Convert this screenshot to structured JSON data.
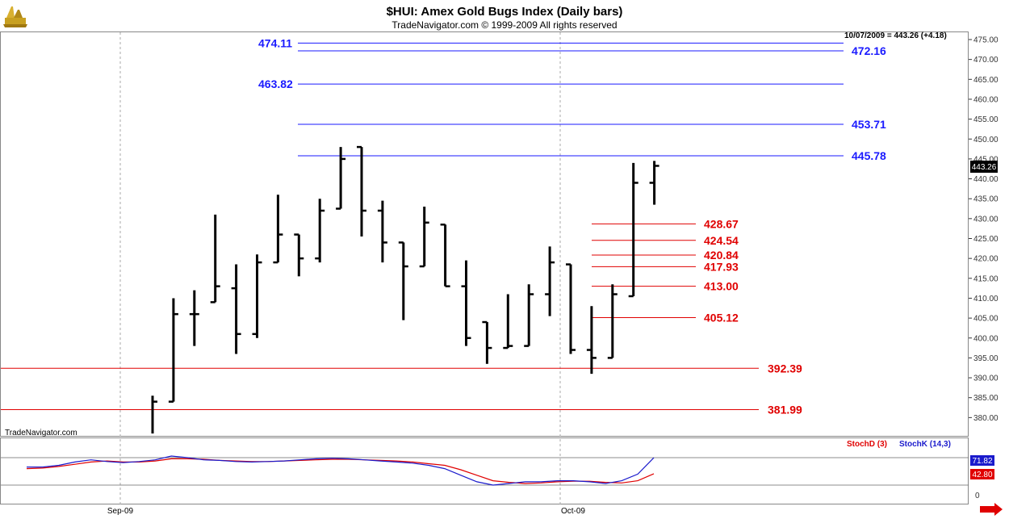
{
  "chart_data": {
    "type": "ohlc",
    "title": "$HUI:  Amex Gold Bugs Index  (Daily bars)",
    "subtitle": "TradeNavigator.com © 1999-2009 All rights reserved",
    "readout": "10/07/2009 = 443.26 (+4.18)",
    "last_price_label": "443.26",
    "watermark": "TradeNavigator.com",
    "x_labels": [
      "Sep-09",
      "Oct-09"
    ],
    "ylim": [
      376,
      477
    ],
    "yticks": [
      "475.00",
      "470.00",
      "465.00",
      "460.00",
      "455.00",
      "450.00",
      "445.00",
      "440.00",
      "435.00",
      "430.00",
      "425.00",
      "420.00",
      "415.00",
      "410.00",
      "405.00",
      "400.00",
      "395.00",
      "390.00",
      "385.00",
      "380.00"
    ],
    "bars": [
      {
        "open": null,
        "high": 385.5,
        "low": 376,
        "close": 384
      },
      {
        "open": 384,
        "high": 410,
        "low": 384,
        "close": 406
      },
      {
        "open": 406,
        "high": 412,
        "low": 398,
        "close": 406
      },
      {
        "open": 409,
        "high": 431,
        "low": 409,
        "close": 413
      },
      {
        "open": 412.5,
        "high": 418.5,
        "low": 396,
        "close": 401
      },
      {
        "open": 401,
        "high": 421,
        "low": 400,
        "close": 419
      },
      {
        "open": 419,
        "high": 436,
        "low": 419,
        "close": 426
      },
      {
        "open": 426,
        "high": 426,
        "low": 415.5,
        "close": 420
      },
      {
        "open": 420,
        "high": 435,
        "low": 419,
        "close": 432
      },
      {
        "open": 432.5,
        "high": 448,
        "low": 432.5,
        "close": 445
      },
      {
        "open": 448,
        "high": 448,
        "low": 425.5,
        "close": 432
      },
      {
        "open": 432,
        "high": 434.5,
        "low": 419,
        "close": 424
      },
      {
        "open": 424,
        "high": 424,
        "low": 404.5,
        "close": 418
      },
      {
        "open": 418,
        "high": 433,
        "low": 418,
        "close": 429
      },
      {
        "open": 428.5,
        "high": 428.5,
        "low": 413,
        "close": 413
      },
      {
        "open": 413,
        "high": 419.5,
        "low": 398,
        "close": 400
      },
      {
        "open": 404,
        "high": 404,
        "low": 393.5,
        "close": 397.5
      },
      {
        "open": 397.5,
        "high": 411,
        "low": 397.5,
        "close": 398
      },
      {
        "open": 398,
        "high": 413.5,
        "low": 398,
        "close": 411
      },
      {
        "open": 411,
        "high": 423,
        "low": 405.5,
        "close": 419
      },
      {
        "open": 418.5,
        "high": 418.5,
        "low": 396,
        "close": 397
      },
      {
        "open": 397,
        "high": 408,
        "low": 391,
        "close": 395
      },
      {
        "open": 395,
        "high": 413.5,
        "low": 395,
        "close": 411
      },
      {
        "open": 410.5,
        "high": 444,
        "low": 410.5,
        "close": 439
      },
      {
        "open": 439,
        "high": 444.5,
        "low": 433.5,
        "close": 443.26
      }
    ],
    "levels_blue": [
      {
        "value": 474.11,
        "label": "474.11",
        "side": "left"
      },
      {
        "value": 472.16,
        "label": "472.16",
        "side": "right"
      },
      {
        "value": 463.82,
        "label": "463.82",
        "side": "left"
      },
      {
        "value": 453.71,
        "label": "453.71",
        "side": "right"
      },
      {
        "value": 445.78,
        "label": "445.78",
        "side": "right"
      }
    ],
    "levels_red_short": [
      {
        "value": 428.67,
        "label": "428.67"
      },
      {
        "value": 424.54,
        "label": "424.54"
      },
      {
        "value": 420.84,
        "label": "420.84"
      },
      {
        "value": 417.93,
        "label": "417.93"
      },
      {
        "value": 413.0,
        "label": "413.00"
      },
      {
        "value": 405.12,
        "label": "405.12"
      }
    ],
    "levels_red_full": [
      {
        "value": 392.39,
        "label": "392.39"
      },
      {
        "value": 381.99,
        "label": "381.99"
      }
    ],
    "stochastic": {
      "legend_d": "StochD (3)",
      "legend_k": "StochK (14,3)",
      "k_label": "71.82",
      "d_label": "42.80",
      "zero_label": "0",
      "ylim": [
        0,
        100
      ],
      "k": [
        55,
        55,
        58,
        64,
        68,
        65,
        63,
        65,
        68,
        75,
        72,
        68,
        67,
        65,
        64,
        65,
        66,
        68,
        70,
        71,
        70,
        68,
        66,
        64,
        62,
        58,
        52,
        40,
        28,
        22,
        25,
        28,
        28,
        30,
        30,
        28,
        25,
        30,
        42,
        71.82
      ],
      "d": [
        52,
        53,
        56,
        60,
        64,
        66,
        64,
        64,
        66,
        70,
        70,
        69,
        67,
        66,
        65,
        65,
        66,
        67,
        68,
        69,
        69,
        68,
        67,
        66,
        64,
        61,
        58,
        50,
        40,
        30,
        27,
        25,
        26,
        28,
        29,
        29,
        27,
        26,
        30,
        42.8
      ]
    },
    "colors": {
      "blue_level": "#1a1aff",
      "red_level": "#e00000",
      "stoch_k": "#1a1acc",
      "stoch_d": "#e00000"
    }
  }
}
